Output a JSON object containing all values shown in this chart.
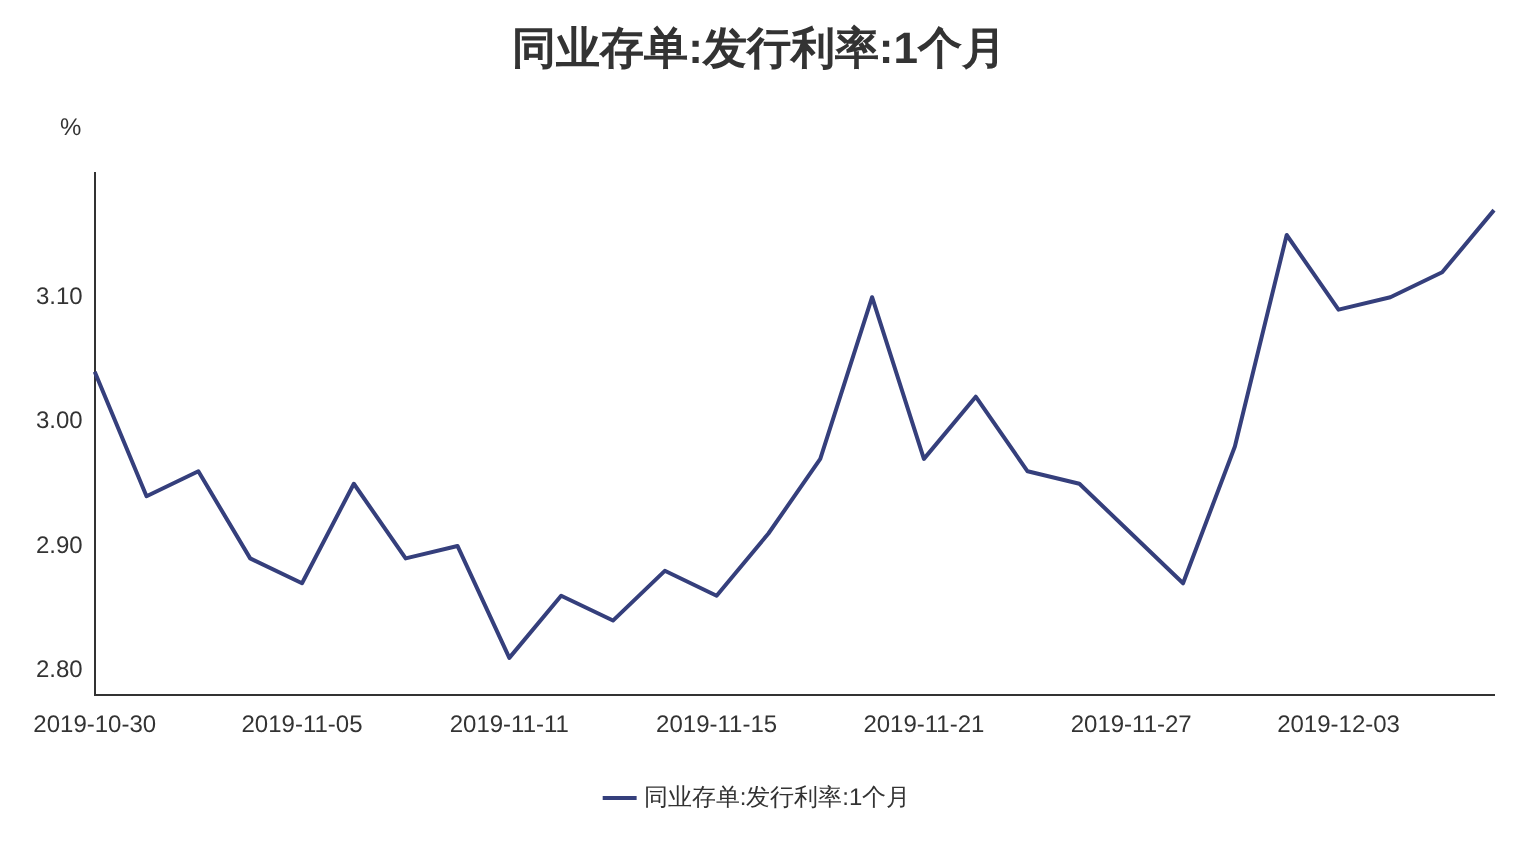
{
  "chart_data": {
    "type": "line",
    "title": "同业存单:发行利率:1个月",
    "ylabel": "%",
    "categories": [
      "2019-10-30",
      null,
      null,
      null,
      "2019-11-05",
      null,
      null,
      null,
      "2019-11-11",
      null,
      null,
      null,
      "2019-11-15",
      null,
      null,
      null,
      "2019-11-21",
      null,
      null,
      null,
      "2019-11-27",
      null,
      null,
      null,
      "2019-12-03",
      null,
      null,
      null
    ],
    "series": [
      {
        "name": "同业存单:发行利率:1个月",
        "color": "#353f7c",
        "values": [
          3.04,
          2.94,
          2.96,
          2.89,
          2.87,
          2.95,
          2.89,
          2.9,
          2.81,
          2.86,
          2.84,
          2.88,
          2.86,
          2.91,
          2.97,
          3.1,
          2.97,
          3.02,
          2.96,
          2.95,
          2.91,
          2.87,
          2.98,
          3.15,
          3.09,
          3.1,
          3.12,
          3.17
        ]
      }
    ],
    "ylim": [
      2.78,
      3.2
    ],
    "yticks": [
      {
        "value": 2.8,
        "label": "2.80"
      },
      {
        "value": 2.9,
        "label": "2.90"
      },
      {
        "value": 3.0,
        "label": "3.00"
      },
      {
        "value": 3.1,
        "label": "3.10"
      }
    ],
    "grid": false,
    "legend": "bottom",
    "marker": "none",
    "line_style": "solid"
  }
}
